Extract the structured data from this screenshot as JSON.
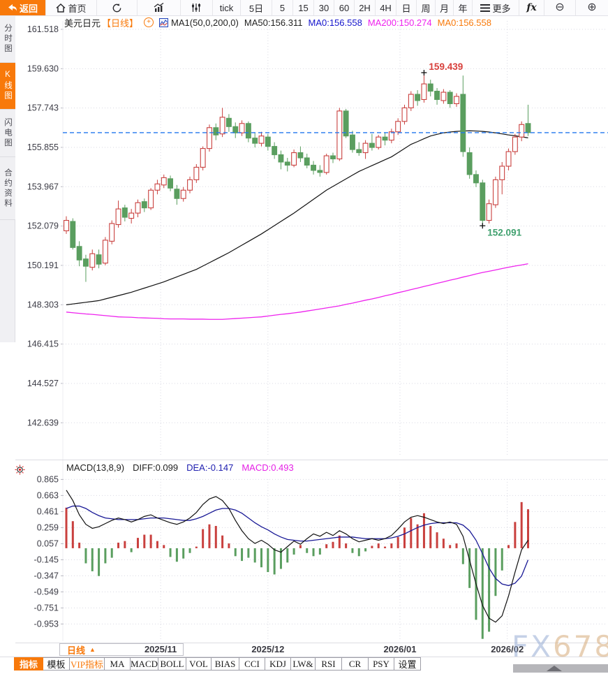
{
  "toolbar": {
    "back": "返回",
    "home": "首页",
    "intervals": [
      "tick",
      "5日",
      "5",
      "15",
      "30",
      "60",
      "2H",
      "4H",
      "日",
      "周",
      "月",
      "年"
    ],
    "more": "更多",
    "fx": "fx",
    "zoom_out_icon": "⊖",
    "zoom_in_icon": "⊕"
  },
  "sidebar": {
    "items": [
      {
        "label": "分时图",
        "active": false
      },
      {
        "label": "K线图",
        "active": true
      },
      {
        "label": "闪电图",
        "active": false
      },
      {
        "label": "合约资料",
        "active": false
      }
    ]
  },
  "header": {
    "symbol": "美元日元",
    "period": "【日线】",
    "ma_settings": "MA1(50,0,200,0)",
    "ma50": "MA50:156.311",
    "ma0_blue": "MA0:156.558",
    "ma200": "MA200:150.274",
    "ma0_orange": "MA0:156.558"
  },
  "macd_header": {
    "title": "MACD(13,8,9)",
    "diff": "DIFF:0.099",
    "dea": "DEA:-0.147",
    "macd": "MACD:0.493"
  },
  "bottom": {
    "period": "日线",
    "period_arrow": "▲",
    "tabs": [
      {
        "label": "指标",
        "state": "active"
      },
      {
        "label": "模板",
        "state": "normal"
      },
      {
        "label": "VIP指标",
        "state": "vip"
      },
      {
        "label": "MA",
        "state": "normal"
      },
      {
        "label": "MACD",
        "state": "normal"
      },
      {
        "label": "BOLL",
        "state": "normal"
      },
      {
        "label": "VOL",
        "state": "normal"
      },
      {
        "label": "BIAS",
        "state": "normal"
      },
      {
        "label": "CCI",
        "state": "normal"
      },
      {
        "label": "KDJ",
        "state": "normal"
      },
      {
        "label": "LW&",
        "state": "normal"
      },
      {
        "label": "RSI",
        "state": "normal"
      },
      {
        "label": "CR",
        "state": "normal"
      },
      {
        "label": "PSY",
        "state": "normal"
      },
      {
        "label": "设置",
        "state": "normal"
      }
    ]
  },
  "watermark": {
    "part1": "FX",
    "part2": "678"
  },
  "chart_data": {
    "type": "candlestick+macd",
    "title": "美元日元 日线 (USD/JPY daily)",
    "y_axis_labels": [
      "161.518",
      "159.630",
      "157.743",
      "155.855",
      "153.967",
      "152.079",
      "150.191",
      "148.303",
      "146.415",
      "144.527",
      "142.639"
    ],
    "macd_axis_labels": [
      "0.865",
      "0.663",
      "0.461",
      "0.259",
      "0.057",
      "-0.145",
      "-0.347",
      "-0.549",
      "-0.751",
      "-0.953"
    ],
    "months": [
      {
        "label": "2025/11",
        "index": 14.5
      },
      {
        "label": "2025/12",
        "index": 31
      },
      {
        "label": "2026/01",
        "index": 51.3
      },
      {
        "label": "2026/02",
        "index": 67.8
      }
    ],
    "price_line": 156.558,
    "high_annotation": {
      "value": "159.439",
      "price": 159.439,
      "index": 55
    },
    "low_annotation": {
      "value": "152.091",
      "price": 152.091,
      "index": 64
    },
    "colors": {
      "up": "#c9403e",
      "down": "#5a9e5f",
      "ma50": "#111111",
      "ma200": "#ee22ee",
      "price_line": "#2277ee",
      "diff": "#111111",
      "dea": "#191996",
      "grid": "#d9d9e3",
      "axis_text": "#3c3c46",
      "high_label": "#d8403c",
      "low_label": "#3fa06e"
    },
    "candles": [
      [
        151.85,
        152.55,
        151.7,
        152.35
      ],
      [
        152.3,
        152.45,
        150.95,
        151.05
      ],
      [
        151.1,
        151.35,
        150.15,
        150.45
      ],
      [
        150.5,
        150.7,
        149.4,
        150.15
      ],
      [
        150.1,
        150.95,
        149.95,
        150.75
      ],
      [
        150.7,
        150.95,
        150.05,
        150.25
      ],
      [
        150.3,
        151.55,
        150.2,
        151.4
      ],
      [
        151.35,
        152.35,
        151.2,
        152.2
      ],
      [
        152.15,
        153.3,
        152.0,
        152.9
      ],
      [
        152.95,
        153.1,
        152.3,
        152.5
      ],
      [
        152.45,
        152.9,
        152.2,
        152.7
      ],
      [
        152.7,
        153.35,
        152.5,
        153.2
      ],
      [
        153.25,
        153.4,
        152.75,
        152.95
      ],
      [
        152.95,
        153.9,
        152.85,
        153.8
      ],
      [
        153.8,
        154.3,
        153.6,
        154.1
      ],
      [
        154.05,
        154.55,
        153.9,
        154.4
      ],
      [
        154.35,
        154.5,
        153.75,
        153.9
      ],
      [
        153.85,
        154.05,
        153.1,
        153.4
      ],
      [
        153.4,
        153.95,
        153.25,
        153.8
      ],
      [
        153.8,
        154.45,
        153.65,
        154.3
      ],
      [
        154.3,
        155.05,
        154.15,
        154.9
      ],
      [
        154.9,
        155.9,
        154.75,
        155.8
      ],
      [
        155.8,
        156.95,
        155.65,
        156.8
      ],
      [
        156.8,
        157.0,
        156.2,
        156.45
      ],
      [
        156.5,
        157.75,
        156.35,
        157.3
      ],
      [
        157.25,
        157.45,
        156.6,
        156.85
      ],
      [
        156.85,
        157.05,
        156.3,
        156.55
      ],
      [
        156.55,
        157.15,
        156.4,
        157.0
      ],
      [
        157.0,
        157.1,
        156.1,
        156.3
      ],
      [
        156.3,
        156.55,
        155.85,
        156.05
      ],
      [
        156.05,
        156.6,
        155.9,
        156.4
      ],
      [
        156.35,
        156.5,
        155.7,
        155.9
      ],
      [
        155.9,
        156.1,
        155.3,
        155.5
      ],
      [
        155.5,
        155.7,
        154.8,
        155.15
      ],
      [
        155.15,
        155.35,
        154.7,
        155.0
      ],
      [
        155.0,
        155.75,
        154.9,
        155.6
      ],
      [
        155.6,
        155.9,
        155.15,
        155.35
      ],
      [
        155.35,
        155.55,
        154.85,
        155.0
      ],
      [
        155.0,
        155.2,
        154.55,
        154.75
      ],
      [
        154.75,
        155.0,
        154.45,
        154.65
      ],
      [
        154.65,
        155.55,
        154.55,
        155.45
      ],
      [
        155.45,
        155.6,
        155.1,
        155.3
      ],
      [
        155.3,
        157.75,
        155.2,
        157.6
      ],
      [
        157.6,
        157.7,
        156.3,
        156.4
      ],
      [
        156.45,
        156.65,
        155.6,
        155.75
      ],
      [
        155.75,
        156.1,
        155.45,
        155.6
      ],
      [
        155.6,
        156.2,
        155.3,
        156.05
      ],
      [
        156.05,
        156.5,
        155.7,
        155.85
      ],
      [
        155.85,
        156.45,
        155.75,
        156.35
      ],
      [
        156.35,
        156.55,
        155.95,
        156.2
      ],
      [
        156.2,
        156.75,
        156.05,
        156.6
      ],
      [
        156.6,
        157.25,
        156.45,
        157.1
      ],
      [
        157.1,
        157.9,
        156.95,
        157.75
      ],
      [
        157.75,
        158.55,
        157.6,
        158.4
      ],
      [
        158.4,
        158.6,
        157.85,
        158.1
      ],
      [
        158.15,
        159.44,
        158.0,
        158.9
      ],
      [
        158.9,
        159.1,
        158.3,
        158.55
      ],
      [
        158.55,
        158.7,
        157.9,
        158.15
      ],
      [
        158.1,
        158.65,
        157.95,
        158.5
      ],
      [
        158.5,
        158.6,
        157.75,
        157.95
      ],
      [
        157.95,
        158.45,
        157.8,
        158.3
      ],
      [
        158.4,
        159.3,
        155.4,
        155.65
      ],
      [
        155.6,
        155.85,
        154.35,
        154.55
      ],
      [
        154.55,
        154.75,
        153.95,
        154.15
      ],
      [
        154.15,
        154.3,
        152.09,
        152.35
      ],
      [
        152.35,
        153.35,
        152.2,
        153.15
      ],
      [
        153.1,
        154.45,
        152.95,
        154.3
      ],
      [
        154.3,
        155.15,
        153.6,
        154.95
      ],
      [
        154.95,
        155.8,
        154.75,
        155.65
      ],
      [
        155.65,
        156.5,
        155.5,
        156.35
      ],
      [
        156.35,
        157.1,
        156.15,
        156.95
      ],
      [
        157.0,
        157.9,
        156.4,
        156.56
      ]
    ],
    "ma50": [
      148.3,
      148.34,
      148.38,
      148.42,
      148.46,
      148.5,
      148.58,
      148.66,
      148.74,
      148.82,
      148.9,
      149.0,
      149.1,
      149.2,
      149.3,
      149.4,
      149.52,
      149.64,
      149.76,
      149.88,
      150.0,
      150.16,
      150.32,
      150.48,
      150.64,
      150.8,
      150.98,
      151.16,
      151.34,
      151.52,
      151.7,
      151.9,
      152.1,
      152.3,
      152.5,
      152.7,
      152.92,
      153.14,
      153.36,
      153.58,
      153.8,
      153.98,
      154.16,
      154.34,
      154.52,
      154.7,
      154.84,
      154.98,
      155.12,
      155.26,
      155.4,
      155.6,
      155.8,
      156.0,
      156.13,
      156.27,
      156.4,
      156.48,
      156.55,
      156.59,
      156.62,
      156.64,
      156.65,
      156.64,
      156.62,
      156.59,
      156.55,
      156.5,
      156.45,
      156.41,
      156.36,
      156.31
    ],
    "ma200": [
      147.95,
      147.92,
      147.89,
      147.86,
      147.84,
      147.81,
      147.78,
      147.75,
      147.72,
      147.71,
      147.7,
      147.68,
      147.67,
      147.66,
      147.65,
      147.63,
      147.62,
      147.62,
      147.62,
      147.61,
      147.61,
      147.61,
      147.6,
      147.6,
      147.6,
      147.62,
      147.64,
      147.66,
      147.68,
      147.7,
      147.72,
      147.76,
      147.8,
      147.84,
      147.87,
      147.91,
      147.95,
      148.0,
      148.05,
      148.1,
      148.15,
      148.2,
      148.25,
      148.32,
      148.38,
      148.45,
      148.52,
      148.58,
      148.65,
      148.73,
      148.8,
      148.88,
      148.95,
      149.03,
      149.1,
      149.18,
      149.25,
      149.33,
      149.4,
      149.48,
      149.55,
      149.63,
      149.7,
      149.78,
      149.85,
      149.91,
      149.97,
      150.04,
      150.1,
      150.16,
      150.21,
      150.27
    ],
    "macd_hist": [
      0.51,
      0.34,
      0.07,
      -0.19,
      -0.29,
      -0.35,
      -0.19,
      -0.12,
      0.07,
      0.09,
      -0.05,
      0.13,
      0.17,
      0.17,
      0.09,
      0.04,
      -0.11,
      -0.17,
      -0.13,
      -0.06,
      0.02,
      0.24,
      0.3,
      0.28,
      0.16,
      0.06,
      -0.1,
      -0.16,
      -0.12,
      -0.18,
      -0.24,
      -0.3,
      -0.33,
      -0.26,
      -0.18,
      -0.08,
      0.04,
      -0.06,
      -0.1,
      -0.08,
      0.05,
      0.08,
      0.16,
      0.06,
      -0.06,
      -0.1,
      -0.04,
      0.03,
      0.06,
      0.02,
      0.06,
      0.14,
      0.26,
      0.38,
      0.3,
      0.44,
      0.28,
      0.2,
      0.12,
      0.04,
      0.06,
      -0.2,
      -0.5,
      -0.9,
      -1.14,
      -1.05,
      -0.6,
      -0.28,
      0.04,
      0.33,
      0.58,
      0.49
    ],
    "diff": [
      0.73,
      0.6,
      0.42,
      0.3,
      0.25,
      0.27,
      0.31,
      0.35,
      0.38,
      0.36,
      0.33,
      0.36,
      0.4,
      0.42,
      0.38,
      0.35,
      0.32,
      0.3,
      0.33,
      0.38,
      0.45,
      0.55,
      0.62,
      0.65,
      0.6,
      0.5,
      0.35,
      0.22,
      0.12,
      0.06,
      0.1,
      0.05,
      -0.02,
      -0.05,
      0.02,
      0.09,
      0.05,
      0.12,
      0.18,
      0.15,
      0.2,
      0.16,
      0.22,
      0.18,
      0.12,
      0.08,
      0.1,
      0.12,
      0.1,
      0.12,
      0.16,
      0.24,
      0.33,
      0.39,
      0.41,
      0.39,
      0.36,
      0.33,
      0.31,
      0.33,
      0.3,
      0.15,
      -0.15,
      -0.45,
      -0.72,
      -0.88,
      -0.93,
      -0.85,
      -0.6,
      -0.3,
      -0.02,
      0.099
    ],
    "dea": [
      0.5,
      0.53,
      0.53,
      0.5,
      0.45,
      0.41,
      0.38,
      0.37,
      0.36,
      0.36,
      0.36,
      0.36,
      0.37,
      0.38,
      0.38,
      0.38,
      0.37,
      0.36,
      0.35,
      0.35,
      0.37,
      0.4,
      0.44,
      0.48,
      0.5,
      0.5,
      0.48,
      0.44,
      0.38,
      0.32,
      0.27,
      0.23,
      0.18,
      0.14,
      0.11,
      0.1,
      0.09,
      0.09,
      0.1,
      0.11,
      0.12,
      0.13,
      0.14,
      0.14,
      0.14,
      0.13,
      0.12,
      0.12,
      0.12,
      0.12,
      0.13,
      0.15,
      0.18,
      0.22,
      0.26,
      0.29,
      0.31,
      0.32,
      0.32,
      0.32,
      0.32,
      0.29,
      0.22,
      0.1,
      -0.07,
      -0.25,
      -0.38,
      -0.45,
      -0.47,
      -0.44,
      -0.35,
      -0.147
    ]
  }
}
